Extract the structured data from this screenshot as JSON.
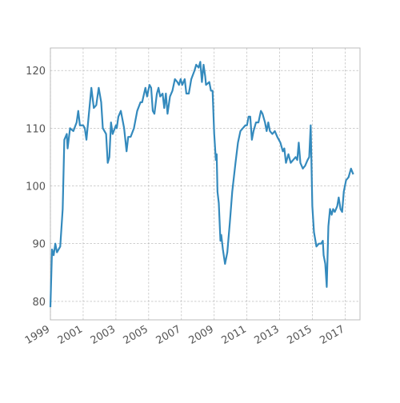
{
  "chart_data": {
    "type": "line",
    "color": "#348abd",
    "grid": true,
    "xlim": [
      1999,
      2017.9
    ],
    "ylim": [
      76.8,
      123.9
    ],
    "xticks": [
      1999,
      2001,
      2003,
      2005,
      2007,
      2009,
      2011,
      2013,
      2015,
      2017
    ],
    "yticks": [
      80,
      90,
      100,
      110,
      120
    ],
    "x": [
      1999.0,
      1999.1,
      1999.2,
      1999.3,
      1999.4,
      1999.6,
      1999.75,
      1999.85,
      2000.0,
      2000.05,
      2000.2,
      2000.4,
      2000.6,
      2000.7,
      2000.8,
      2001.0,
      2001.1,
      2001.2,
      2001.3,
      2001.5,
      2001.65,
      2001.8,
      2001.95,
      2002.1,
      2002.2,
      2002.4,
      2002.5,
      2002.6,
      2002.7,
      2002.8,
      2003.0,
      2003.05,
      2003.15,
      2003.3,
      2003.4,
      2003.5,
      2003.65,
      2003.75,
      2003.9,
      2004.1,
      2004.3,
      2004.5,
      2004.6,
      2004.8,
      2004.9,
      2005.05,
      2005.15,
      2005.25,
      2005.35,
      2005.5,
      2005.6,
      2005.7,
      2005.85,
      2005.95,
      2006.05,
      2006.15,
      2006.3,
      2006.45,
      2006.6,
      2006.75,
      2006.85,
      2006.95,
      2007.05,
      2007.2,
      2007.3,
      2007.45,
      2007.6,
      2007.8,
      2007.9,
      2008.05,
      2008.15,
      2008.25,
      2008.35,
      2008.45,
      2008.5,
      2008.7,
      2008.8,
      2008.9,
      2009.0,
      2009.1,
      2009.15,
      2009.2,
      2009.28,
      2009.38,
      2009.43,
      2009.53,
      2009.66,
      2009.8,
      2009.95,
      2010.1,
      2010.3,
      2010.45,
      2010.6,
      2010.75,
      2010.9,
      2011.0,
      2011.1,
      2011.2,
      2011.3,
      2011.4,
      2011.55,
      2011.7,
      2011.85,
      2011.95,
      2012.1,
      2012.2,
      2012.3,
      2012.4,
      2012.55,
      2012.7,
      2012.85,
      2013.04,
      2013.19,
      2013.28,
      2013.38,
      2013.53,
      2013.67,
      2013.82,
      2013.97,
      2014.07,
      2014.16,
      2014.26,
      2014.41,
      2014.55,
      2014.7,
      2014.8,
      2014.89,
      2014.99,
      2015.09,
      2015.24,
      2015.39,
      2015.53,
      2015.63,
      2015.68,
      2015.78,
      2015.87,
      2015.97,
      2016.07,
      2016.17,
      2016.26,
      2016.36,
      2016.51,
      2016.6,
      2016.71,
      2016.81,
      2016.91,
      2017.05,
      2017.2,
      2017.35,
      2017.49
    ],
    "values": [
      79,
      89,
      88,
      90,
      88.5,
      89.5,
      96,
      108,
      109,
      106.5,
      110,
      109.5,
      111,
      113,
      110.5,
      110.5,
      110,
      108,
      111,
      117,
      113.5,
      114,
      117,
      114.5,
      110,
      109,
      104,
      105,
      111,
      109,
      110.5,
      110,
      112,
      113,
      111.5,
      110,
      106,
      108.5,
      108.5,
      110,
      113,
      114.5,
      114.5,
      117,
      115.5,
      117.5,
      117,
      113,
      112.5,
      116,
      117,
      115.5,
      116,
      113.5,
      116,
      112.5,
      115.5,
      116.5,
      118.5,
      118,
      117.5,
      118.5,
      117.5,
      118.5,
      116,
      116,
      118.5,
      120,
      121,
      120.5,
      121.5,
      118,
      121,
      119,
      117.5,
      118,
      116.5,
      116.5,
      109,
      104.5,
      105.5,
      99,
      97,
      90.5,
      91.5,
      89,
      86.5,
      88.5,
      93.5,
      99,
      104,
      107.5,
      109.5,
      110,
      110.5,
      110.5,
      112,
      112,
      108,
      109.5,
      111,
      111,
      113,
      112.5,
      111,
      109.5,
      111,
      109.5,
      109,
      109.5,
      108.5,
      107.5,
      106,
      106.5,
      104,
      105.5,
      104,
      104.5,
      105,
      104.5,
      107.5,
      104,
      103,
      103.5,
      104.5,
      105,
      110.5,
      96.5,
      92,
      89.5,
      90,
      90,
      90.5,
      88,
      86.5,
      82.5,
      93,
      96,
      95,
      96,
      95.5,
      96.5,
      98,
      96,
      95.5,
      99,
      101,
      101.5,
      103,
      102
    ]
  }
}
